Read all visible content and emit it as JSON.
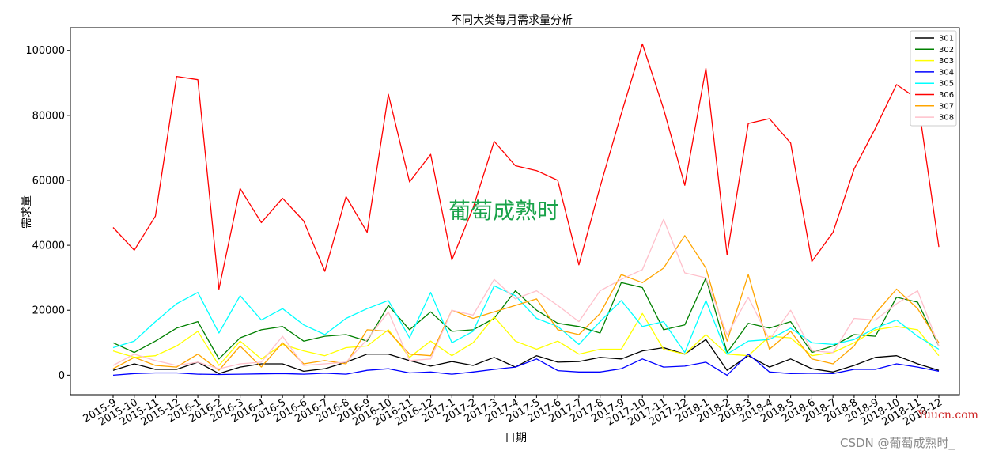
{
  "chart_data": {
    "type": "line",
    "title": "不同大类每月需求量分析",
    "xlabel": "日期",
    "ylabel": "需求量",
    "ylim": [
      -6000,
      107000
    ],
    "yticks": [
      0,
      20000,
      40000,
      60000,
      80000,
      100000
    ],
    "ytick_labels": [
      "0",
      "20000",
      "40000",
      "60000",
      "80000",
      "100000"
    ],
    "categories": [
      "2015-9",
      "2015-10",
      "2015-11",
      "2015-12",
      "2016-1",
      "2016-2",
      "2016-3",
      "2016-4",
      "2016-5",
      "2016-6",
      "2016-7",
      "2016-8",
      "2016-9",
      "2016-10",
      "2016-11",
      "2016-12",
      "2017-1",
      "2017-2",
      "2017-3",
      "2017-4",
      "2017-5",
      "2017-6",
      "2017-7",
      "2017-8",
      "2017-9",
      "2017-10",
      "2017-11",
      "2017-12",
      "2018-1",
      "2018-2",
      "2018-3",
      "2018-4",
      "2018-5",
      "2018-6",
      "2018-7",
      "2018-8",
      "2018-9",
      "2018-10",
      "2018-11",
      "2018-12"
    ],
    "legend_position": "top-right",
    "grid": false,
    "series": [
      {
        "name": "301",
        "color": "#000000",
        "values": [
          1500,
          3500,
          1800,
          1800,
          4000,
          500,
          2500,
          3500,
          3500,
          1200,
          2000,
          4000,
          6500,
          6500,
          4500,
          2800,
          4200,
          3000,
          5500,
          2500,
          6000,
          4000,
          4200,
          5500,
          5000,
          7500,
          8500,
          6500,
          11000,
          1500,
          6000,
          2500,
          5000,
          2000,
          1000,
          3000,
          5500,
          6000,
          3500,
          1500
        ]
      },
      {
        "name": "302",
        "color": "#008000",
        "values": [
          10000,
          7000,
          10500,
          14500,
          16500,
          5000,
          11500,
          14000,
          15000,
          10500,
          12000,
          12500,
          10500,
          21500,
          14000,
          19500,
          13500,
          14000,
          17500,
          26000,
          20000,
          16000,
          15000,
          13000,
          28500,
          27000,
          14000,
          15500,
          30000,
          7000,
          16000,
          14500,
          16500,
          7000,
          9000,
          12500,
          12000,
          24000,
          22500,
          9000
        ]
      },
      {
        "name": "303",
        "color": "#ffff00",
        "values": [
          7500,
          5500,
          6000,
          9000,
          13500,
          3000,
          10500,
          5000,
          9500,
          7500,
          6000,
          8500,
          9000,
          14000,
          5500,
          10500,
          6000,
          10000,
          18000,
          10500,
          8000,
          10500,
          6500,
          8000,
          8000,
          19000,
          8000,
          6500,
          12500,
          6500,
          6000,
          12000,
          11500,
          6000,
          7000,
          10000,
          14000,
          15000,
          14000,
          6000
        ]
      },
      {
        "name": "304",
        "color": "#0000ff",
        "values": [
          0,
          500,
          700,
          700,
          300,
          200,
          300,
          400,
          500,
          300,
          600,
          300,
          1500,
          2000,
          700,
          1000,
          300,
          1000,
          1800,
          2500,
          5000,
          1400,
          1000,
          1000,
          2000,
          5000,
          2500,
          2800,
          4000,
          0,
          6500,
          1000,
          500,
          600,
          500,
          1800,
          1800,
          3500,
          2500,
          1200
        ]
      },
      {
        "name": "305",
        "color": "#00ffff",
        "values": [
          8500,
          10500,
          16500,
          22000,
          25500,
          13000,
          24500,
          17000,
          20500,
          15500,
          12500,
          17500,
          20500,
          23000,
          11500,
          25500,
          10000,
          13500,
          27500,
          24500,
          17500,
          15000,
          9500,
          16500,
          23000,
          15000,
          16500,
          7000,
          23000,
          6500,
          10500,
          11000,
          14500,
          10000,
          9500,
          11000,
          14500,
          17000,
          12000,
          8000
        ]
      },
      {
        "name": "306",
        "color": "#ff0000",
        "values": [
          45500,
          38500,
          49000,
          92000,
          91000,
          26500,
          57500,
          47000,
          54500,
          47500,
          32000,
          55000,
          44000,
          86500,
          59500,
          68000,
          35500,
          51500,
          72000,
          64500,
          63000,
          60000,
          34000,
          58000,
          80500,
          102000,
          82000,
          58500,
          94500,
          37000,
          77500,
          79000,
          71500,
          35000,
          44000,
          63500,
          76000,
          89500,
          85000,
          39500
        ]
      },
      {
        "name": "307",
        "color": "#ffa500",
        "values": [
          2000,
          5500,
          3000,
          2500,
          6500,
          1500,
          9000,
          2500,
          10000,
          3500,
          4500,
          3500,
          14000,
          13500,
          6500,
          6000,
          20000,
          17500,
          19500,
          21500,
          23500,
          14000,
          12500,
          19000,
          31000,
          28500,
          33000,
          43000,
          33000,
          10500,
          31000,
          8000,
          13500,
          5000,
          3500,
          9000,
          19000,
          26500,
          20500,
          10000
        ]
      },
      {
        "name": "308",
        "color": "#ffc0cb",
        "values": [
          3000,
          6500,
          4500,
          3000,
          4000,
          2000,
          3500,
          4000,
          12000,
          3000,
          3500,
          4000,
          11000,
          19500,
          4500,
          5000,
          20000,
          18500,
          29500,
          23500,
          26000,
          21500,
          16500,
          26000,
          29500,
          32500,
          48000,
          31500,
          30000,
          12500,
          24000,
          11000,
          20000,
          7500,
          7000,
          17500,
          17000,
          22000,
          26000,
          9000
        ]
      }
    ]
  },
  "watermarks": {
    "center": "葡萄成熟时",
    "corner_site": "Yuucn.com",
    "csdn": "CSDN @葡萄成熟时_"
  }
}
